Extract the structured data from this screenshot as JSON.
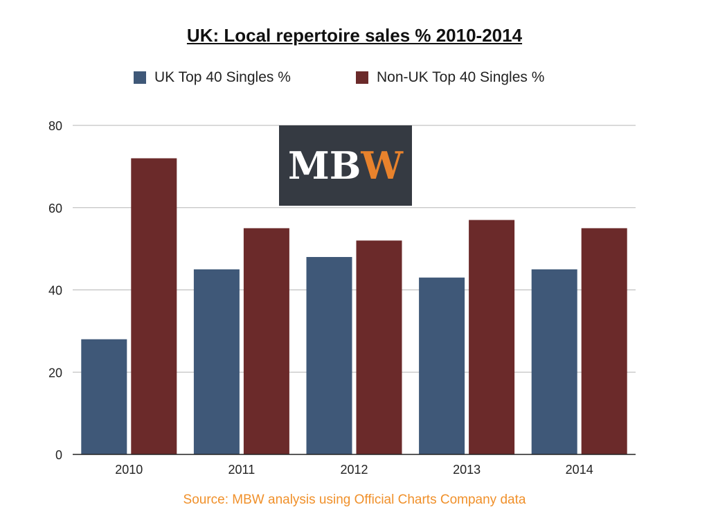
{
  "chart_data": {
    "type": "bar",
    "title": "UK: Local repertoire sales % 2010-2014",
    "categories": [
      "2010",
      "2011",
      "2012",
      "2013",
      "2014"
    ],
    "series": [
      {
        "name": "UK Top 40 Singles %",
        "values": [
          28,
          45,
          48,
          43,
          45
        ],
        "color": "#3f5878"
      },
      {
        "name": "Non-UK Top 40 Singles %",
        "values": [
          72,
          55,
          52,
          57,
          55
        ],
        "color": "#6b2a2a"
      }
    ],
    "ylim": [
      0,
      80
    ],
    "yticks": [
      0,
      20,
      40,
      60,
      80
    ],
    "grid": true,
    "legend_position": "top",
    "xlabel": "",
    "ylabel": ""
  },
  "logo": {
    "text_white": "M",
    "text_white2": "B",
    "text_orange": "W",
    "bg_color": "#353a42",
    "orange": "#e8822c"
  },
  "source": {
    "text": "Source: MBW analysis using Official Charts Company data",
    "color": "#f0902a"
  }
}
